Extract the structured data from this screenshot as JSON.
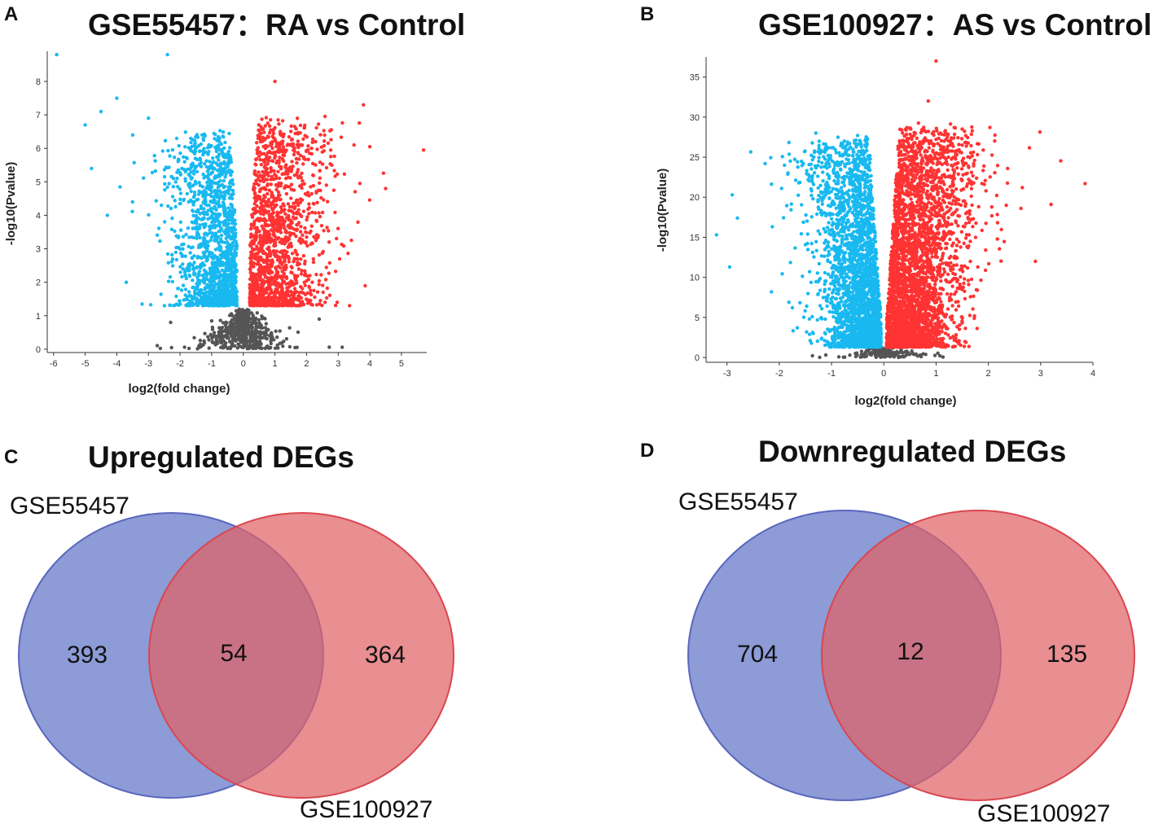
{
  "panels": {
    "A": {
      "letter": "A",
      "title": "GSE55457：RA vs Control"
    },
    "B": {
      "letter": "B",
      "title": "GSE100927：AS vs Control"
    },
    "C": {
      "letter": "C",
      "title": "Upregulated DEGs"
    },
    "D": {
      "letter": "D",
      "title": "Downregulated DEGs"
    }
  },
  "colors": {
    "up": "#ff3333",
    "down": "#19b9f0",
    "ns": "#555555",
    "venn_left": "#6d7fcc",
    "venn_right": "#e06266"
  },
  "chart_data": [
    {
      "id": "A",
      "type": "scatter",
      "title": "GSE55457：RA vs Control",
      "xlabel": "log2(fold change)",
      "ylabel": "-log10(Pvalue)",
      "xlim": [
        -6.2,
        5.8
      ],
      "ylim": [
        -0.1,
        8.9
      ],
      "xticks": [
        "-6",
        "-5",
        "-4",
        "-3",
        "-2",
        "-1",
        "0",
        "1",
        "2",
        "3",
        "4",
        "5"
      ],
      "xtick_values": [
        -6,
        -5,
        -4,
        -3,
        -2,
        -1,
        0,
        1,
        2,
        3,
        4,
        5
      ],
      "yticks": [
        "0",
        "1",
        "2",
        "3",
        "4",
        "5",
        "6",
        "7",
        "8"
      ],
      "ytick_values": [
        0,
        1,
        2,
        3,
        4,
        5,
        6,
        7,
        8
      ],
      "series": [
        {
          "name": "up",
          "points": [
            [
              1.0,
              8.0
            ],
            [
              3.8,
              7.3
            ],
            [
              1.1,
              6.85
            ],
            [
              5.7,
              5.95
            ],
            [
              3.5,
              6.1
            ],
            [
              4.0,
              6.05
            ],
            [
              2.2,
              5.2
            ],
            [
              4.5,
              4.8
            ]
          ]
        },
        {
          "name": "down",
          "points": [
            [
              -5.9,
              8.8
            ],
            [
              -2.4,
              8.8
            ],
            [
              -4.0,
              7.5
            ],
            [
              -4.5,
              7.1
            ],
            [
              -5.0,
              6.7
            ],
            [
              -3.5,
              6.4
            ],
            [
              -3.0,
              6.9
            ],
            [
              -4.8,
              5.4
            ],
            [
              -4.3,
              4.0
            ],
            [
              -3.7,
              2.0
            ],
            [
              -3.2,
              1.35
            ]
          ]
        },
        {
          "name": "ns",
          "points": [
            [
              2.4,
              0.9
            ],
            [
              -2.3,
              0.8
            ],
            [
              0.0,
              0.05
            ]
          ]
        }
      ],
      "generated": {
        "up_count": 1500,
        "down_count": 1500,
        "ns_count": 520,
        "threshold_y": 1.3,
        "up_xmin": 0.2,
        "down_xmax": -0.2,
        "seed": 11
      }
    },
    {
      "id": "B",
      "type": "scatter",
      "title": "GSE100927：AS vs Control",
      "xlabel": "log2(fold change)",
      "ylabel": "-log10(Pvalue)",
      "xlim": [
        -3.4,
        4.0
      ],
      "ylim": [
        -0.6,
        37.5
      ],
      "xticks": [
        "-3",
        "-2",
        "-1",
        "0",
        "1",
        "2",
        "3",
        "4"
      ],
      "xtick_values": [
        -3,
        -2,
        -1,
        0,
        1,
        2,
        3,
        4
      ],
      "yticks": [
        "0",
        "5",
        "10",
        "15",
        "20",
        "25",
        "30",
        "35"
      ],
      "ytick_values": [
        0,
        5,
        10,
        15,
        20,
        25,
        30,
        35
      ],
      "series": [
        {
          "name": "up",
          "points": [
            [
              1.0,
              37.0
            ],
            [
              3.85,
              21.7
            ],
            [
              3.2,
              19.1
            ],
            [
              2.65,
              21.2
            ],
            [
              0.85,
              32.0
            ],
            [
              1.5,
              28.5
            ],
            [
              2.9,
              12.0
            ]
          ]
        },
        {
          "name": "down",
          "points": [
            [
              -3.2,
              15.3
            ],
            [
              -2.9,
              20.3
            ],
            [
              -2.8,
              17.4
            ],
            [
              -2.95,
              11.3
            ],
            [
              -2.15,
              8.2
            ],
            [
              -1.9,
              24.0
            ],
            [
              -1.3,
              28.0
            ],
            [
              -0.5,
              27.7
            ]
          ]
        },
        {
          "name": "ns",
          "points": [
            [
              0.0,
              0.5
            ],
            [
              0.2,
              0.3
            ],
            [
              -0.3,
              0.8
            ]
          ]
        }
      ],
      "generated": {
        "up_count": 3400,
        "down_count": 2600,
        "ns_count": 160,
        "threshold_y": 1.3,
        "up_xmin": 0.05,
        "down_xmax": -0.05,
        "seed": 29
      }
    },
    {
      "id": "C",
      "type": "venn",
      "title": "Upregulated DEGs",
      "sets": [
        "GSE55457",
        "GSE100927"
      ],
      "only_left": 393,
      "both": 54,
      "only_right": 364
    },
    {
      "id": "D",
      "type": "venn",
      "title": "Downregulated DEGs",
      "sets": [
        "GSE55457",
        "GSE100927"
      ],
      "only_left": 704,
      "both": 12,
      "only_right": 135
    }
  ]
}
